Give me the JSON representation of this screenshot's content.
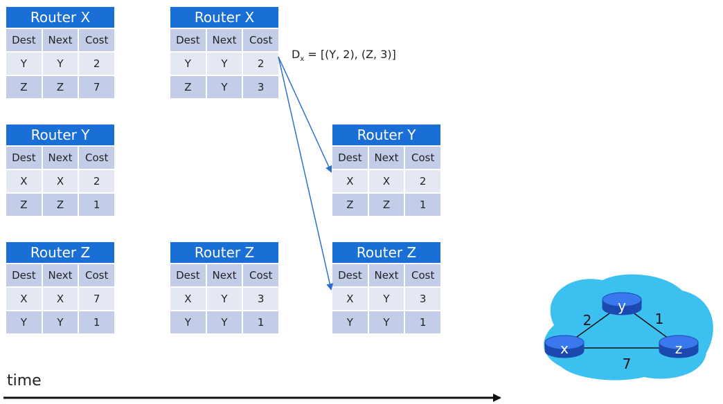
{
  "colors": {
    "header_blue": "#1a6fd6",
    "row_light": "#e4e8f3",
    "row_dark": "#c3cde8",
    "arrow_blue": "#2a6fd1",
    "cloud": "#3cc0f0",
    "router_node": "#2560d8"
  },
  "columns": [
    "Dest",
    "Next",
    "Cost"
  ],
  "tables": {
    "x_initial": {
      "title": "Router X",
      "rows": [
        [
          "Y",
          "Y",
          "2"
        ],
        [
          "Z",
          "Z",
          "7"
        ]
      ]
    },
    "y_initial": {
      "title": "Router Y",
      "rows": [
        [
          "X",
          "X",
          "2"
        ],
        [
          "Z",
          "Z",
          "1"
        ]
      ]
    },
    "z_initial": {
      "title": "Router Z",
      "rows": [
        [
          "X",
          "X",
          "7"
        ],
        [
          "Y",
          "Y",
          "1"
        ]
      ]
    },
    "x_updated": {
      "title": "Router X",
      "rows": [
        [
          "Y",
          "Y",
          "2"
        ],
        [
          "Z",
          "Y",
          "3"
        ]
      ]
    },
    "z_updated": {
      "title": "Router Z",
      "rows": [
        [
          "X",
          "Y",
          "3"
        ],
        [
          "Y",
          "Y",
          "1"
        ]
      ]
    },
    "y_received": {
      "title": "Router Y",
      "rows": [
        [
          "X",
          "X",
          "2"
        ],
        [
          "Z",
          "Z",
          "1"
        ]
      ]
    },
    "z_received": {
      "title": "Router Z",
      "rows": [
        [
          "X",
          "Y",
          "3"
        ],
        [
          "Y",
          "Y",
          "1"
        ]
      ]
    }
  },
  "distance_vector": {
    "prefix": "D",
    "subscript": "x",
    "value": " = [(Y, 2), (Z, 3)]"
  },
  "time_label": "time",
  "network": {
    "nodes": {
      "x": "x",
      "y": "y",
      "z": "z"
    },
    "links": {
      "xy": "2",
      "yz": "1",
      "xz": "7"
    }
  }
}
